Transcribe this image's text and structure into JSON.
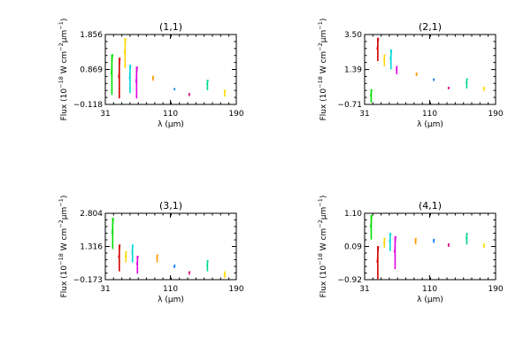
{
  "chart_data": [
    {
      "type": "scatter",
      "title": "(1,1)",
      "xlabel_parts": [
        "λ (",
        "μ",
        "m)"
      ],
      "ylabel_parts": [
        "Flux (10",
        "−18",
        " W cm",
        "−2",
        "μm",
        "−1",
        ")"
      ],
      "xlim": [
        31,
        190
      ],
      "ylim": [
        -0.118,
        1.856
      ],
      "xticks": [
        "31",
        "110",
        "190"
      ],
      "yticks": [
        "−0.118",
        "0.869",
        "1.856"
      ],
      "ytick_values": [
        -0.118,
        0.869,
        1.856
      ],
      "grid": false,
      "series": [
        {
          "color": "#00e000",
          "x": 39,
          "values": [
            0.15,
            1.3
          ]
        },
        {
          "color": "#d40000",
          "x": 48,
          "values": [
            0.05,
            1.2
          ]
        },
        {
          "color": "#ffd700",
          "x": 55,
          "values": [
            0.9,
            1.75
          ]
        },
        {
          "color": "#00d8d8",
          "x": 61,
          "values": [
            0.2,
            1.0
          ]
        },
        {
          "color": "#e000e0",
          "x": 69,
          "values": [
            0.05,
            0.95
          ]
        },
        {
          "color": "#ff9900",
          "x": 89,
          "values": [
            0.55,
            0.69
          ]
        },
        {
          "color": "#0080ff",
          "x": 115,
          "values": [
            0.28,
            0.34
          ]
        },
        {
          "color": "#e00080",
          "x": 133,
          "values": [
            0.12,
            0.2
          ]
        },
        {
          "color": "#00d890",
          "x": 155,
          "values": [
            0.28,
            0.58
          ]
        },
        {
          "color": "#ffdd00",
          "x": 176,
          "values": [
            0.1,
            0.3
          ]
        }
      ]
    },
    {
      "type": "scatter",
      "title": "(2,1)",
      "xlabel_parts": [
        "λ (",
        "μ",
        "m)"
      ],
      "ylabel_parts": [
        "Flux (10",
        "−18",
        " W cm",
        "−2",
        "μm",
        "−1",
        ")"
      ],
      "xlim": [
        31,
        190
      ],
      "ylim": [
        -0.71,
        3.5
      ],
      "xticks": [
        "31",
        "110",
        "190"
      ],
      "yticks": [
        "−0.71",
        "1.39",
        "3.50"
      ],
      "ytick_values": [
        -0.71,
        1.39,
        3.5
      ],
      "grid": false,
      "series": [
        {
          "color": "#00e000",
          "x": 39,
          "values": [
            -0.6,
            0.2
          ]
        },
        {
          "color": "#d40000",
          "x": 47,
          "values": [
            1.9,
            3.3
          ]
        },
        {
          "color": "#ffd700",
          "x": 55,
          "values": [
            1.6,
            2.3
          ]
        },
        {
          "color": "#00d8d8",
          "x": 63,
          "values": [
            1.4,
            2.6
          ]
        },
        {
          "color": "#e000e0",
          "x": 70,
          "values": [
            1.1,
            1.6
          ]
        },
        {
          "color": "#ff9900",
          "x": 94,
          "values": [
            1.0,
            1.2
          ]
        },
        {
          "color": "#0080ff",
          "x": 115,
          "values": [
            0.7,
            0.85
          ]
        },
        {
          "color": "#e00080",
          "x": 133,
          "values": [
            0.2,
            0.35
          ]
        },
        {
          "color": "#00d890",
          "x": 155,
          "values": [
            0.25,
            0.85
          ]
        },
        {
          "color": "#ffdd00",
          "x": 176,
          "values": [
            0.1,
            0.35
          ]
        }
      ]
    },
    {
      "type": "scatter",
      "title": "(3,1)",
      "xlabel_parts": [
        "λ (",
        "μ",
        "m)"
      ],
      "ylabel_parts": [
        "Flux (10",
        "−18",
        " W cm",
        "−2",
        "μm",
        "−1",
        ")"
      ],
      "xlim": [
        31,
        190
      ],
      "ylim": [
        -0.173,
        2.804
      ],
      "xticks": [
        "31",
        "110",
        "190"
      ],
      "yticks": [
        "−0.173",
        "1.316",
        "2.804"
      ],
      "ytick_values": [
        -0.173,
        1.316,
        2.804
      ],
      "grid": false,
      "series": [
        {
          "color": "#00e000",
          "x": 40,
          "values": [
            1.2,
            2.6
          ]
        },
        {
          "color": "#d40000",
          "x": 48,
          "values": [
            0.2,
            1.4
          ]
        },
        {
          "color": "#ffd700",
          "x": 56,
          "values": [
            0.6,
            1.1
          ]
        },
        {
          "color": "#00d8d8",
          "x": 64,
          "values": [
            0.6,
            1.4
          ]
        },
        {
          "color": "#e000e0",
          "x": 70,
          "values": [
            0.1,
            0.9
          ]
        },
        {
          "color": "#ff9900",
          "x": 94,
          "values": [
            0.6,
            0.95
          ]
        },
        {
          "color": "#0080ff",
          "x": 115,
          "values": [
            0.35,
            0.5
          ]
        },
        {
          "color": "#e00080",
          "x": 133,
          "values": [
            0.05,
            0.2
          ]
        },
        {
          "color": "#00d890",
          "x": 155,
          "values": [
            0.2,
            0.7
          ]
        },
        {
          "color": "#ffdd00",
          "x": 176,
          "values": [
            -0.1,
            0.2
          ]
        }
      ]
    },
    {
      "type": "scatter",
      "title": "(4,1)",
      "xlabel_parts": [
        "λ (",
        "μ",
        "m)"
      ],
      "ylabel_parts": [
        "Flux (10",
        "−18",
        " W cm",
        "−2",
        "μm",
        "−1",
        ")"
      ],
      "xlim": [
        31,
        190
      ],
      "ylim": [
        -0.92,
        1.1
      ],
      "xticks": [
        "31",
        "110",
        "190"
      ],
      "yticks": [
        "−0.92",
        "0.09",
        "1.10"
      ],
      "ytick_values": [
        -0.92,
        0.09,
        1.1
      ],
      "grid": false,
      "series": [
        {
          "color": "#00e000",
          "x": 39,
          "values": [
            0.3,
            1.05
          ]
        },
        {
          "color": "#d40000",
          "x": 47,
          "values": [
            -0.9,
            0.1
          ]
        },
        {
          "color": "#ffd700",
          "x": 55,
          "values": [
            0.05,
            0.35
          ]
        },
        {
          "color": "#00d8d8",
          "x": 62,
          "values": [
            -0.05,
            0.5
          ]
        },
        {
          "color": "#e000e0",
          "x": 68,
          "values": [
            -0.6,
            0.4
          ]
        },
        {
          "color": "#ff9900",
          "x": 93,
          "values": [
            0.15,
            0.35
          ]
        },
        {
          "color": "#0080ff",
          "x": 115,
          "values": [
            0.2,
            0.32
          ]
        },
        {
          "color": "#e00080",
          "x": 133,
          "values": [
            0.08,
            0.18
          ]
        },
        {
          "color": "#00d890",
          "x": 155,
          "values": [
            0.15,
            0.5
          ]
        },
        {
          "color": "#ffdd00",
          "x": 176,
          "values": [
            0.05,
            0.18
          ]
        }
      ]
    }
  ]
}
